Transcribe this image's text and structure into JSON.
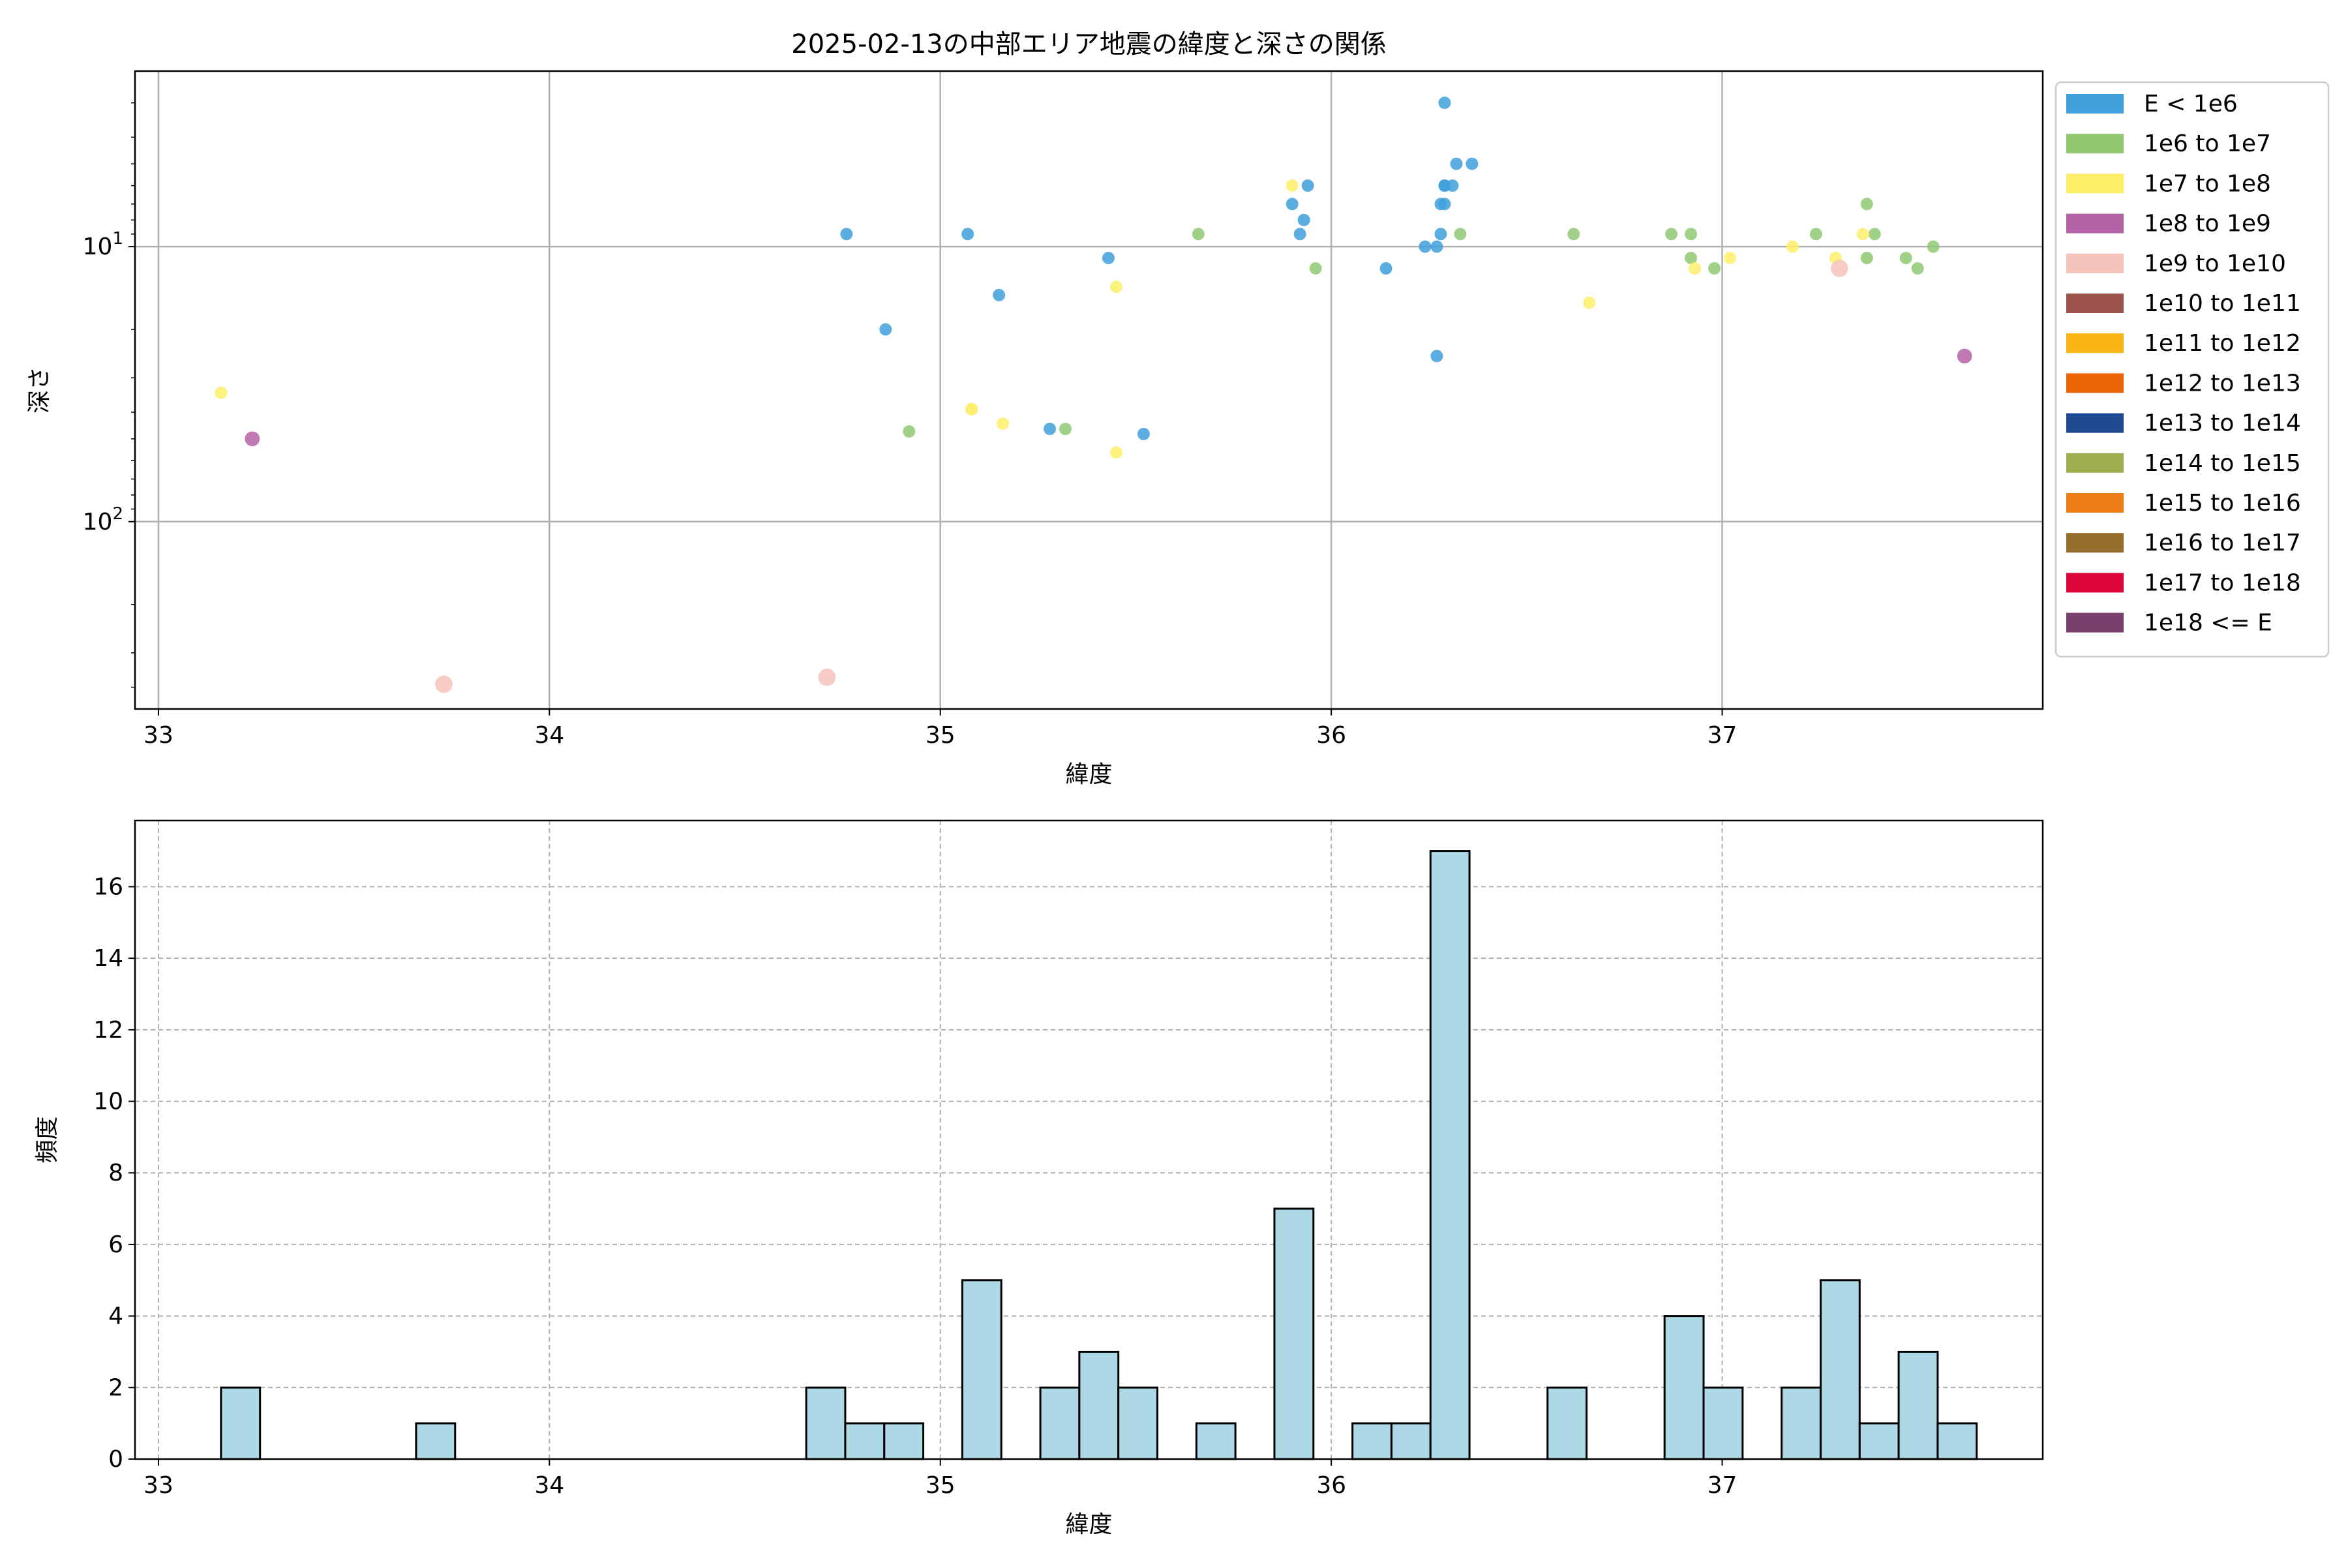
{
  "chart_data": [
    {
      "type": "scatter",
      "title": "2025-02-13の中部エリア地震の緯度と深さの関係",
      "xlabel": "緯度",
      "ylabel": "深さ",
      "xlim": [
        32.94,
        37.82
      ],
      "ylim": [
        480,
        2.3
      ],
      "yscale": "log",
      "y_inverted": true,
      "grid": true,
      "xticks": [
        33,
        34,
        35,
        36,
        37
      ],
      "xtick_labels": [
        "33",
        "34",
        "35",
        "36",
        "37"
      ],
      "yticks": [
        10,
        100
      ],
      "ytick_labels": [
        "10^1",
        "10^2"
      ],
      "legend_position": "right outside",
      "legend": [
        {
          "label": "E < 1e6",
          "color": "#3fa0dc"
        },
        {
          "label": "1e6 to 1e7",
          "color": "#91c973"
        },
        {
          "label": "1e7 to 1e8",
          "color": "#fdee6a"
        },
        {
          "label": "1e8 to 1e9",
          "color": "#b561a5"
        },
        {
          "label": "1e9 to 1e10",
          "color": "#f6c3bb"
        },
        {
          "label": "1e10 to 1e11",
          "color": "#9d544d"
        },
        {
          "label": "1e11 to 1e12",
          "color": "#f9b513"
        },
        {
          "label": "1e12 to 1e13",
          "color": "#ec6408"
        },
        {
          "label": "1e13 to 1e14",
          "color": "#1f4a91"
        },
        {
          "label": "1e14 to 1e15",
          "color": "#9fad4f"
        },
        {
          "label": "1e15 to 1e16",
          "color": "#ed7d14"
        },
        {
          "label": "1e16 to 1e17",
          "color": "#956c2c"
        },
        {
          "label": "1e17 to 1e18",
          "color": "#dc0639"
        },
        {
          "label": "1e18 <= E",
          "color": "#7a3f6d"
        }
      ],
      "series": [
        {
          "name": "E < 1e6",
          "color": "#3fa0dc",
          "size": 5,
          "points": [
            [
              34.76,
              9
            ],
            [
              34.86,
              20
            ],
            [
              35.07,
              9
            ],
            [
              35.15,
              15
            ],
            [
              35.28,
              46
            ],
            [
              35.43,
              11
            ],
            [
              35.52,
              48
            ],
            [
              35.9,
              7
            ],
            [
              35.92,
              9
            ],
            [
              35.93,
              8
            ],
            [
              35.94,
              6
            ],
            [
              36.14,
              12
            ],
            [
              36.24,
              10
            ],
            [
              36.27,
              10
            ],
            [
              36.27,
              25
            ],
            [
              36.28,
              9
            ],
            [
              36.28,
              7
            ],
            [
              36.29,
              7
            ],
            [
              36.29,
              6
            ],
            [
              36.29,
              6
            ],
            [
              36.29,
              3
            ],
            [
              36.31,
              6
            ],
            [
              36.32,
              5
            ],
            [
              36.36,
              5
            ]
          ]
        },
        {
          "name": "1e6 to 1e7",
          "color": "#91c973",
          "size": 5,
          "points": [
            [
              34.92,
              47
            ],
            [
              35.32,
              46
            ],
            [
              35.66,
              9
            ],
            [
              35.96,
              12
            ],
            [
              36.33,
              9
            ],
            [
              36.62,
              9
            ],
            [
              36.87,
              9
            ],
            [
              36.92,
              11
            ],
            [
              36.92,
              9
            ],
            [
              36.98,
              12
            ],
            [
              37.24,
              9
            ],
            [
              37.37,
              7
            ],
            [
              37.37,
              11
            ],
            [
              37.39,
              9
            ],
            [
              37.47,
              11
            ],
            [
              37.5,
              12
            ],
            [
              37.54,
              10
            ]
          ]
        },
        {
          "name": "1e7 to 1e8",
          "color": "#fdee6a",
          "size": 5,
          "points": [
            [
              33.16,
              34
            ],
            [
              35.08,
              39
            ],
            [
              35.08,
              39
            ],
            [
              35.16,
              44
            ],
            [
              35.45,
              14
            ],
            [
              35.45,
              56
            ],
            [
              35.9,
              6
            ],
            [
              36.66,
              16
            ],
            [
              36.93,
              12
            ],
            [
              37.02,
              11
            ],
            [
              37.18,
              10
            ],
            [
              37.29,
              11
            ],
            [
              37.36,
              9
            ]
          ]
        },
        {
          "name": "1e8 to 1e9",
          "color": "#b561a5",
          "size": 6,
          "points": [
            [
              33.24,
              50
            ],
            [
              37.62,
              25
            ]
          ]
        },
        {
          "name": "1e9 to 1e10",
          "color": "#f6c3bb",
          "size": 7,
          "points": [
            [
              33.73,
              390
            ],
            [
              34.71,
              368
            ],
            [
              37.3,
              12
            ]
          ]
        }
      ]
    },
    {
      "type": "bar",
      "subtype": "histogram",
      "xlabel": "緯度",
      "ylabel": "頻度",
      "xlim": [
        32.94,
        37.82
      ],
      "ylim": [
        0,
        17.85
      ],
      "grid": true,
      "bar_color": "#add8e6",
      "edge_color": "#000000",
      "xticks": [
        33,
        34,
        35,
        36,
        37
      ],
      "xtick_labels": [
        "33",
        "34",
        "35",
        "36",
        "37"
      ],
      "yticks": [
        0,
        2,
        4,
        6,
        8,
        10,
        12,
        14,
        16
      ],
      "ytick_labels": [
        "0",
        "2",
        "4",
        "6",
        "8",
        "10",
        "12",
        "14",
        "16"
      ],
      "bin_start": 33.16,
      "bin_width": 0.0998,
      "counts": [
        2,
        0,
        0,
        0,
        0,
        1,
        0,
        0,
        0,
        0,
        0,
        0,
        0,
        0,
        0,
        2,
        1,
        1,
        0,
        5,
        0,
        2,
        3,
        2,
        0,
        1,
        0,
        7,
        0,
        1,
        1,
        17,
        0,
        0,
        2,
        0,
        0,
        4,
        2,
        0,
        2,
        5,
        1,
        3,
        1
      ]
    }
  ]
}
